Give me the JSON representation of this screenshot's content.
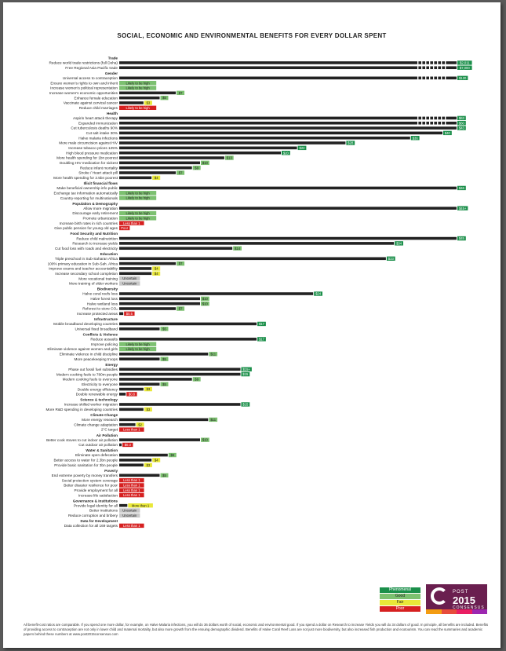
{
  "title": "SOCIAL, ECONOMIC AND ENVIRONMENTAL BENEFITS FOR EVERY DOLLAR SPENT",
  "colors": {
    "phenomenal": "#1b8f4a",
    "good": "#7cc070",
    "fair": "#e9e838",
    "poor": "#d62020",
    "bar": "#222222",
    "uncertain": "#c8c8c8",
    "logo": "#6a1f4f"
  },
  "legend": [
    {
      "label": "Phenomenal",
      "rating": "phenomenal"
    },
    {
      "label": "Good",
      "rating": "good"
    },
    {
      "label": "Fair",
      "rating": "fair"
    },
    {
      "label": "Poor",
      "rating": "poor"
    }
  ],
  "logo": {
    "top": "POST",
    "year": "2015",
    "bottom": "CONSENSUS"
  },
  "footnote": "All benefit-cost ratios are comparable. If you spend one more dollar, for example, on Halve Malaria infections, you will do 36 dollars worth of social, economic and environmental good. If you spend a dollar on Research to increase Yields you will do 34 dollars of good. In principle, all benefits are included. Benefits of providing access to contraception are not only in lower child and maternal mortality, but also more growth from the ensuing demographic dividend. Benefits of Halve Coral Reef Loss are not just more biodiversity, but also increased fish production and ecotourism. You can read the summaries and academic papers behind these numbers at www.post2015consensus.com",
  "chart_data": {
    "type": "bar",
    "title": "SOCIAL, ECONOMIC AND ENVIRONMENTAL BENEFITS FOR EVERY DOLLAR SPENT",
    "unit": "$",
    "groups": [
      {
        "name": "Trade",
        "items": [
          {
            "label": "Reduce world trade restrictions (full Doha)",
            "value": 2011,
            "text": "$2,011",
            "rating": "phenomenal",
            "broken": true
          },
          {
            "label": "Free Regional Asia Pacific trade",
            "value": 7000,
            "text": "$7,000",
            "rating": "phenomenal",
            "broken": true
          }
        ]
      },
      {
        "name": "Gender",
        "items": [
          {
            "label": "Universal access to contraception",
            "value": 120,
            "text": "$120",
            "rating": "phenomenal",
            "broken": true
          },
          {
            "label": "Ensure women's rights to own and inherit",
            "value": null,
            "text": "Likely to be high",
            "rating": "good"
          },
          {
            "label": "Increase women's political representation",
            "value": null,
            "text": "Likely to be high",
            "rating": "good"
          },
          {
            "label": "Increase women's economic opportunities",
            "value": 7,
            "text": "$7",
            "rating": "good"
          },
          {
            "label": "Enhance female education",
            "value": 5,
            "text": "$5",
            "rating": "good"
          },
          {
            "label": "Vaccinate against cervical cancer",
            "value": 3,
            "text": "$3",
            "rating": "fair"
          },
          {
            "label": "Reduce child marriages",
            "value": null,
            "text": "Likely to be high",
            "rating": "poor"
          }
        ]
      },
      {
        "name": "Health",
        "items": [
          {
            "label": "Aspirin heart attack therapy",
            "value": 63,
            "text": "$63",
            "rating": "phenomenal",
            "broken": true
          },
          {
            "label": "Expanded immunization",
            "value": 60,
            "text": "$60",
            "rating": "phenomenal",
            "broken": true
          },
          {
            "label": "Cut tuberculosis deaths 90%",
            "value": 43,
            "text": "$43",
            "rating": "phenomenal"
          },
          {
            "label": "Cut salt intake 30%",
            "value": 40,
            "text": "$40",
            "rating": "phenomenal"
          },
          {
            "label": "Halve malaria infections",
            "value": 36,
            "text": "$36",
            "rating": "phenomenal"
          },
          {
            "label": "More male circumcision against HIV",
            "value": 28,
            "text": "$28",
            "rating": "phenomenal"
          },
          {
            "label": "Increase tobacco prices 125%",
            "value": 22,
            "text": "$22",
            "rating": "phenomenal"
          },
          {
            "label": "High blood pressure medication",
            "value": 20,
            "text": "$20",
            "rating": "phenomenal"
          },
          {
            "label": "More health spending for 1bn poorest",
            "value": 13,
            "text": "$13",
            "rating": "good"
          },
          {
            "label": "Doubling HIV medication for sickest",
            "value": 10,
            "text": "$10",
            "rating": "good"
          },
          {
            "label": "Reduce infant mortality",
            "value": 9,
            "text": "$9",
            "rating": "good"
          },
          {
            "label": "Stroke / Heart attack pill",
            "value": 7,
            "text": "$7",
            "rating": "good"
          },
          {
            "label": "More health spending for 2.5bn poorest",
            "value": 4,
            "text": "$4",
            "rating": "fair"
          }
        ]
      },
      {
        "name": "Illicit financial flows",
        "items": [
          {
            "label": "Make beneficial ownership info public",
            "value": 46,
            "text": "$46",
            "rating": "phenomenal"
          },
          {
            "label": "Exchange tax information automatically",
            "value": null,
            "text": "Likely to be high",
            "rating": "good"
          },
          {
            "label": "Country-reporting for multinationals",
            "value": null,
            "text": "Likely to be high",
            "rating": "good"
          }
        ]
      },
      {
        "name": "Population & Demography",
        "items": [
          {
            "label": "Allow more migration",
            "value": 45,
            "text": "$45+",
            "rating": "phenomenal"
          },
          {
            "label": "Discourage early retirement",
            "value": null,
            "text": "Likely to be high",
            "rating": "good"
          },
          {
            "label": "Promote urbanization",
            "value": null,
            "text": "Likely to be high",
            "rating": "good"
          },
          {
            "label": "Increase birth rates in rich countries",
            "value": null,
            "text": "Less than 1",
            "rating": "poor"
          },
          {
            "label": "Give public pension for young old ages",
            "value": null,
            "text": "Poor",
            "rating": "poor"
          }
        ]
      },
      {
        "name": "Food Security and Nutrition",
        "items": [
          {
            "label": "Reduce child malnutrition",
            "value": 45,
            "text": "$45",
            "rating": "phenomenal"
          },
          {
            "label": "Research to increase yields",
            "value": 34,
            "text": "$34",
            "rating": "phenomenal"
          },
          {
            "label": "Cut food loss with roads and electricity",
            "value": 14,
            "text": "$14",
            "rating": "good"
          }
        ]
      },
      {
        "name": "Education",
        "items": [
          {
            "label": "Triple preschool in Sub-Saharan Africa",
            "value": 33,
            "text": "$33",
            "rating": "phenomenal"
          },
          {
            "label": "100% primary education in Sub-Sah. Africa",
            "value": 7,
            "text": "$7",
            "rating": "good"
          },
          {
            "label": "Improve exams and teacher accountability",
            "value": 4,
            "text": "$4",
            "rating": "fair"
          },
          {
            "label": "Increase secondary school completion",
            "value": 4,
            "text": "$4",
            "rating": "fair"
          },
          {
            "label": "More vocational training",
            "value": null,
            "text": "Uncertain",
            "rating": "uncertain"
          },
          {
            "label": "More training of older workers",
            "value": null,
            "text": "Uncertain",
            "rating": "uncertain"
          }
        ]
      },
      {
        "name": "Biodiversity",
        "items": [
          {
            "label": "Halve coral reefs loss",
            "value": 24,
            "text": "$24",
            "rating": "phenomenal"
          },
          {
            "label": "Halve forest loss",
            "value": 10,
            "text": "$10",
            "rating": "good"
          },
          {
            "label": "Halve wetland loss",
            "value": 10,
            "text": "$10",
            "rating": "good"
          },
          {
            "label": "Reforest to store CO₂",
            "value": 7,
            "text": "$7",
            "rating": "good"
          },
          {
            "label": "Increase protected areas",
            "value": 0.5,
            "text": "$0.5",
            "rating": "poor"
          }
        ]
      },
      {
        "name": "Infrastructure",
        "items": [
          {
            "label": "Mobile broadband developing countries",
            "value": 17,
            "text": "$17",
            "rating": "phenomenal"
          },
          {
            "label": "Universal fixed broadband",
            "value": 5,
            "text": "$5",
            "rating": "good"
          }
        ]
      },
      {
        "name": "Conflicts & Violence",
        "items": [
          {
            "label": "Reduce assaults",
            "value": 17,
            "text": "$17",
            "rating": "phenomenal"
          },
          {
            "label": "Improve policing",
            "value": null,
            "text": "Likely to be high",
            "rating": "good"
          },
          {
            "label": "Eliminate violence against women and girls",
            "value": null,
            "text": "Likely to be high",
            "rating": "good"
          },
          {
            "label": "Eliminate violence in child discipline",
            "value": 11,
            "text": "$11",
            "rating": "good"
          },
          {
            "label": "More peacekeeping troops",
            "value": 5,
            "text": "$5",
            "rating": "good"
          }
        ]
      },
      {
        "name": "Energy",
        "items": [
          {
            "label": "Phase out fossil fuel subsidies",
            "value": 15,
            "text": "$15+",
            "rating": "phenomenal"
          },
          {
            "label": "Modern cooking fuels to 780m people",
            "value": 15,
            "text": "$15",
            "rating": "phenomenal"
          },
          {
            "label": "Modern cooking fuels to everyone",
            "value": 9,
            "text": "$9",
            "rating": "good"
          },
          {
            "label": "Electricity to everyone",
            "value": 5,
            "text": "$5",
            "rating": "good"
          },
          {
            "label": "Double energy efficiency",
            "value": 3,
            "text": "$3",
            "rating": "fair"
          },
          {
            "label": "Double renewable energy",
            "value": 0.8,
            "text": "$0.8",
            "rating": "poor"
          }
        ]
      },
      {
        "name": "Science & technology",
        "items": [
          {
            "label": "Increase skilled worker migration",
            "value": 15,
            "text": "$15",
            "rating": "phenomenal"
          },
          {
            "label": "More R&D spending in developing countries",
            "value": 3,
            "text": "$3",
            "rating": "fair"
          }
        ]
      },
      {
        "name": "Climate Change",
        "items": [
          {
            "label": "More energy research",
            "value": 11,
            "text": "$11",
            "rating": "good"
          },
          {
            "label": "Climate change adaptation",
            "value": 2,
            "text": "$2",
            "rating": "fair"
          },
          {
            "label": "2°C target",
            "value": null,
            "text": "Less than 1",
            "rating": "poor"
          }
        ]
      },
      {
        "name": "Air Pollution",
        "items": [
          {
            "label": "Better cook stoves to cut indoor air pollution",
            "value": 10,
            "text": "$10",
            "rating": "good"
          },
          {
            "label": "Cut outdoor air pollution",
            "value": 0.3,
            "text": "$0.3",
            "rating": "poor"
          }
        ]
      },
      {
        "name": "Water & Sanitation",
        "items": [
          {
            "label": "Eliminate open defecation",
            "value": 6,
            "text": "$6",
            "rating": "good"
          },
          {
            "label": "Better access to water for 2.3bn people",
            "value": 4,
            "text": "$4",
            "rating": "fair"
          },
          {
            "label": "Provide basic sanitation for 3bn people",
            "value": 3,
            "text": "$3",
            "rating": "fair"
          }
        ]
      },
      {
        "name": "Poverty",
        "items": [
          {
            "label": "End extreme poverty by money transfers",
            "value": 5,
            "text": "$5",
            "rating": "good"
          },
          {
            "label": "Social protection system coverage",
            "value": null,
            "text": "Less than 1",
            "rating": "poor"
          },
          {
            "label": "Better disaster resilience for poor",
            "value": null,
            "text": "Less than 1",
            "rating": "poor"
          },
          {
            "label": "Provide employment for all",
            "value": null,
            "text": "Less than 1",
            "rating": "poor"
          },
          {
            "label": "Increase life satisfaction",
            "value": null,
            "text": "Less than 1",
            "rating": "poor"
          }
        ]
      },
      {
        "name": "Governance & Institutions",
        "items": [
          {
            "label": "Provide legal identity for all",
            "value": 1,
            "text": "More than 1",
            "rating": "fair"
          },
          {
            "label": "Better institutions",
            "value": null,
            "text": "Uncertain",
            "rating": "uncertain"
          },
          {
            "label": "Reduce corruption and bribery",
            "value": null,
            "text": "Uncertain",
            "rating": "uncertain"
          }
        ]
      },
      {
        "name": "Data for Development",
        "items": [
          {
            "label": "Data collection for all 169 targets",
            "value": null,
            "text": "Less than 1",
            "rating": "poor"
          }
        ]
      }
    ]
  }
}
